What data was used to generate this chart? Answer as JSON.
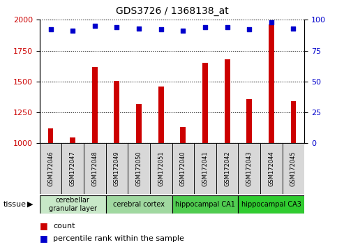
{
  "title": "GDS3726 / 1368138_at",
  "samples": [
    "GSM172046",
    "GSM172047",
    "GSM172048",
    "GSM172049",
    "GSM172050",
    "GSM172051",
    "GSM172040",
    "GSM172041",
    "GSM172042",
    "GSM172043",
    "GSM172044",
    "GSM172045"
  ],
  "counts": [
    1120,
    1045,
    1620,
    1505,
    1320,
    1460,
    1130,
    1650,
    1680,
    1360,
    1960,
    1340
  ],
  "percentiles": [
    92,
    91,
    95,
    94,
    93,
    92,
    91,
    94,
    94,
    92,
    98,
    93
  ],
  "ylim_left": [
    1000,
    2000
  ],
  "ylim_right": [
    0,
    100
  ],
  "yticks_left": [
    1000,
    1250,
    1500,
    1750,
    2000
  ],
  "yticks_right": [
    0,
    25,
    50,
    75,
    100
  ],
  "bar_color": "#cc0000",
  "dot_color": "#0000cc",
  "bar_width": 0.25,
  "tissue_groups": [
    {
      "label": "cerebellar\ngranular layer",
      "indices": [
        0,
        1,
        2
      ],
      "color": "#c8e8c8"
    },
    {
      "label": "cerebral cortex",
      "indices": [
        3,
        4,
        5
      ],
      "color": "#a0d8a0"
    },
    {
      "label": "hippocampal CA1",
      "indices": [
        6,
        7,
        8
      ],
      "color": "#50cc50"
    },
    {
      "label": "hippocampal CA3",
      "indices": [
        9,
        10,
        11
      ],
      "color": "#30cc30"
    }
  ],
  "legend_count_label": "count",
  "legend_pct_label": "percentile rank within the sample",
  "background_color": "#ffffff",
  "plot_bg_color": "#ffffff",
  "tick_label_color_left": "#cc0000",
  "tick_label_color_right": "#0000cc"
}
